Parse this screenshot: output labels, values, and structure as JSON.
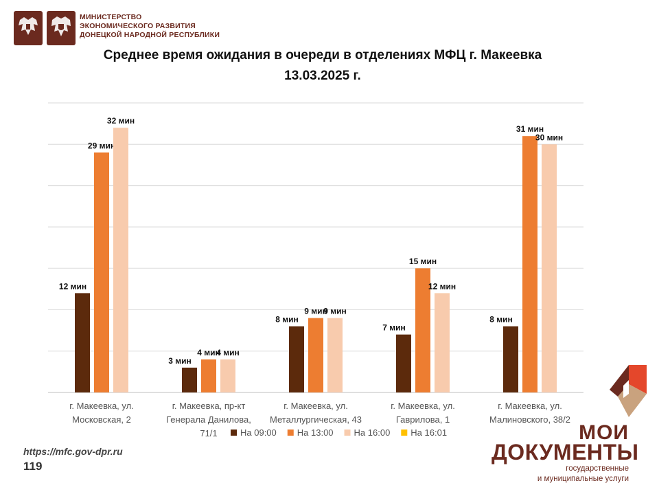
{
  "header": {
    "ministry_lines": [
      "МИНИСТЕРСТВО",
      "ЭКОНОМИЧЕСКОГО РАЗВИТИЯ",
      "ДОНЕЦКОЙ НАРОДНОЙ РЕСПУБЛИКИ"
    ],
    "emblems": [
      "russia-emblem-icon",
      "dpr-emblem-icon"
    ]
  },
  "chart_data": {
    "type": "bar",
    "title": "Среднее время ожидания в очереди в отделениях МФЦ г. Макеевка",
    "subtitle": "13.03.2025 г.",
    "categories": [
      [
        "г. Макеевка, ул.",
        "Московская, 2"
      ],
      [
        "г. Макеевка, пр-кт",
        "Генерала Данилова,",
        "71/1"
      ],
      [
        "г. Макеевка, ул.",
        "Металлургическая, 43"
      ],
      [
        "г. Макеевка, ул.",
        "Гаврилова, 1"
      ],
      [
        "г. Макеевка, ул.",
        "Малиновского, 38/2"
      ]
    ],
    "unit": "мин",
    "series": [
      {
        "name": "На 09:00",
        "color": "#5c2a0c",
        "values": [
          12,
          3,
          8,
          7,
          8
        ]
      },
      {
        "name": "На 13:00",
        "color": "#ed7d31",
        "values": [
          29,
          4,
          9,
          15,
          31
        ]
      },
      {
        "name": "На 16:00",
        "color": "#f8cbad",
        "values": [
          32,
          4,
          9,
          12,
          30
        ]
      },
      {
        "name": "На 16:01",
        "color": "#ffc000",
        "values": [
          null,
          null,
          null,
          null,
          null
        ]
      }
    ],
    "ylim": [
      0,
      35
    ],
    "y_gridline_step": 5,
    "y_tick_labels_shown": false,
    "grid": true,
    "legend_position": "bottom"
  },
  "footer": {
    "url": "https://mfc.gov-dpr.ru",
    "page_number": "119"
  },
  "brand": {
    "name_line1": "МОИ",
    "name_line2": "ДОКУМЕНТЫ",
    "tagline_line1": "государственные",
    "tagline_line2": "и муниципальные услуги",
    "colors": {
      "brown": "#6b2a1f",
      "red": "#e4472b",
      "tan": "#c9a27e"
    }
  }
}
